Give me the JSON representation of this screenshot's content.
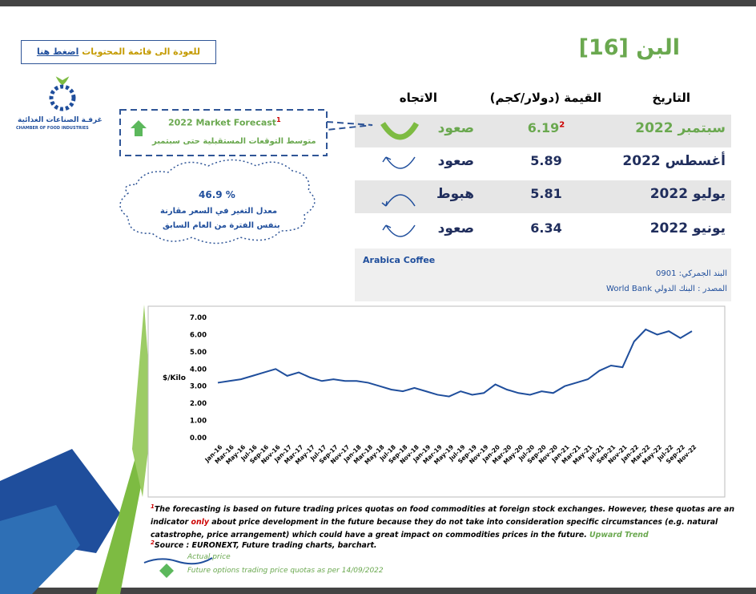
{
  "title": "البن [16]",
  "back_link": {
    "text": "للعودة الى قائمة المحتويات",
    "action": "اضغط هنا"
  },
  "logo": {
    "arabic": "غرفـة الصناعات الغذائية",
    "english": "CHAMBER OF FOOD INDUSTRIES"
  },
  "table": {
    "headers": [
      "التاريخ",
      "القيمة (دولار/كجم)",
      "الاتجاه"
    ],
    "rows": [
      [
        "سبتمبر 2022",
        "6.19",
        "صعود"
      ],
      [
        "أغسطس 2022",
        "5.89",
        "صعود"
      ],
      [
        "يوليو 2022",
        "5.81",
        "هبوط"
      ],
      [
        "يونيو 2022",
        "6.34",
        "صعود"
      ]
    ],
    "first_value_note": "2"
  },
  "forecast": {
    "title": "2022 Market Forecast",
    "note": "1",
    "text": "متوسط التوقعات المستقبلية حتى سبتمبر"
  },
  "change": {
    "value": "46.9 %",
    "line1": "معدل التغير في السعر مقارنة",
    "line2": "بنفس الفترة من العام السابق"
  },
  "product": "Arabica Coffee",
  "customs": "البند الجمركي: 0901",
  "source": "المصدر : البنك الدولي  World Bank",
  "chart_data": {
    "type": "line",
    "y_label": "$/Kilo",
    "categories": [
      "Jan-16",
      "Mar-16",
      "May-16",
      "Jul-16",
      "Sep-16",
      "Nov-16",
      "Jan-17",
      "Mar-17",
      "May-17",
      "Jul-17",
      "Sep-17",
      "Nov-17",
      "Jan-18",
      "Mar-18",
      "May-18",
      "Jul-18",
      "Sep-18",
      "Nov-18",
      "Jan-19",
      "Mar-19",
      "May-19",
      "Jul-19",
      "Sep-19",
      "Nov-19",
      "Jan-20",
      "Mar-20",
      "May-20",
      "Jul-20",
      "Sep-20",
      "Nov-20",
      "Jan-21",
      "Mar-21",
      "May-21",
      "Jul-21",
      "Sep-21",
      "Nov-21",
      "Jan-22",
      "Mar-22",
      "May-22",
      "Jul-22",
      "Sep-22",
      "Nov-22"
    ],
    "series": [
      {
        "name": "Actual price",
        "color": "#1f4e9c",
        "values": [
          3.2,
          3.3,
          3.4,
          3.6,
          3.8,
          4.0,
          3.6,
          3.8,
          3.5,
          3.3,
          3.4,
          3.3,
          3.3,
          3.2,
          3.0,
          2.8,
          2.7,
          2.9,
          2.7,
          2.5,
          2.4,
          2.7,
          2.5,
          2.6,
          3.1,
          2.8,
          2.6,
          2.5,
          2.7,
          2.6,
          3.0,
          3.2,
          3.4,
          3.9,
          4.2,
          4.1,
          5.6,
          6.3,
          6.0,
          6.2,
          5.8,
          6.2
        ]
      }
    ],
    "ylim": [
      0,
      7
    ],
    "yticks": [
      {
        "value": 0,
        "label": "0.00"
      },
      {
        "value": 1,
        "label": "1.00"
      },
      {
        "value": 2,
        "label": "2.00"
      },
      {
        "value": 3,
        "label": "3.00"
      },
      {
        "value": 4,
        "label": "4.00"
      },
      {
        "value": 5,
        "label": "5.00"
      },
      {
        "value": 6,
        "label": "6.00"
      },
      {
        "value": 7,
        "label": "7.00"
      }
    ]
  },
  "footnotes": {
    "marker1": "1",
    "text_before": "The forecasting is based on future trading prices quotas on food commodities at foreign stock exchanges. However, these quotas are an indicator",
    "emphasis": "only",
    "text_after": "about price development in the future because they do not take into consideration specific circumstances (e.g. natural catastrophe, price arrangement) which could have a great impact on commodities prices in the future.",
    "trend": "Upward Trend",
    "marker2": "2",
    "source": "Source : EURONEXT, Future trading charts, barchart."
  },
  "legend": {
    "future": "Future options trading price quotas as per 14/09/2022"
  }
}
